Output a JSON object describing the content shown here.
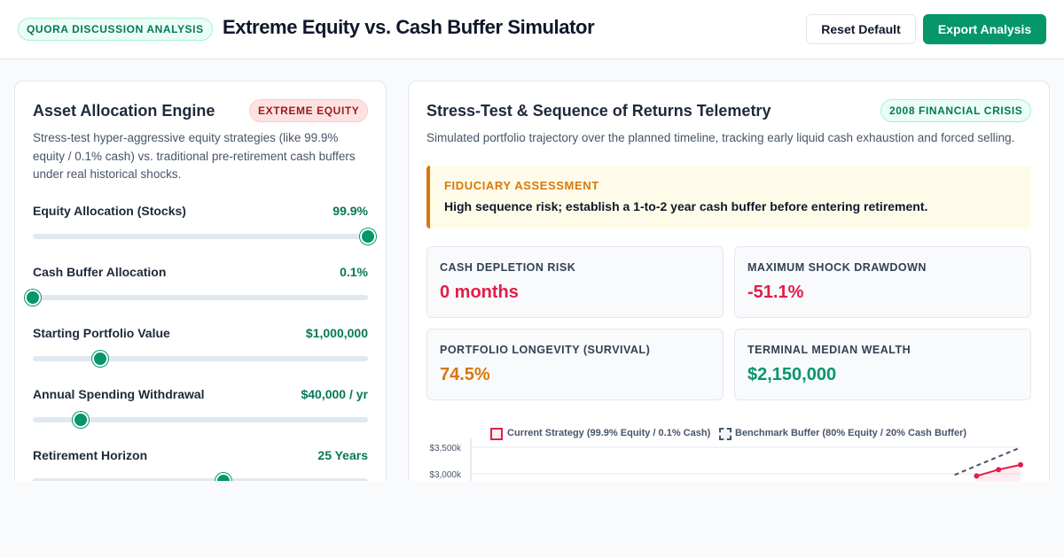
{
  "header": {
    "tag": "QUORA DISCUSSION ANALYSIS",
    "title": "Extreme Equity vs. Cash Buffer Simulator",
    "reset_label": "Reset Default",
    "export_label": "Export Analysis"
  },
  "left_panel": {
    "title": "Asset Allocation Engine",
    "badge": "EXTREME EQUITY",
    "description": "Stress-test hyper-aggressive equity strategies (like 99.9% equity / 0.1% cash) vs. traditional pre-retirement cash buffers under real historical shocks.",
    "controls": [
      {
        "label": "Equity Allocation (Stocks)",
        "value": "99.9%",
        "level": 0.999
      },
      {
        "label": "Cash Buffer Allocation",
        "value": "0.1%",
        "level": 0.0
      },
      {
        "label": "Starting Portfolio Value",
        "value": "$1,000,000",
        "level": 0.2
      },
      {
        "label": "Annual Spending Withdrawal",
        "value": "$40,000 / yr",
        "level": 0.143
      },
      {
        "label": "Retirement Horizon",
        "value": "25 Years",
        "level": 0.568
      }
    ]
  },
  "right_panel": {
    "title": "Stress-Test & Sequence of Returns Telemetry",
    "badge": "2008 FINANCIAL CRISIS",
    "description": "Simulated portfolio trajectory over the planned timeline, tracking early liquid cash exhaustion and forced selling.",
    "assessment": {
      "title": "FIDUCIARY ASSESSMENT",
      "text": "High sequence risk; establish a 1-to-2 year cash buffer before entering retirement."
    },
    "metrics": [
      {
        "label": "CASH DEPLETION RISK",
        "value": "0 months",
        "color": "#e11d48"
      },
      {
        "label": "MAXIMUM SHOCK DRAWDOWN",
        "value": "-51.1%",
        "color": "#e11d48"
      },
      {
        "label": "PORTFOLIO LONGEVITY (SURVIVAL)",
        "value": "74.5%",
        "color": "#d97706"
      },
      {
        "label": "TERMINAL MEDIAN WEALTH",
        "value": "$2,150,000",
        "color": "#059669"
      }
    ]
  },
  "chart_data": {
    "type": "line",
    "legend": [
      "Current Strategy (99.9% Equity / 0.1% Cash)",
      "Benchmark Buffer (80% Equity / 20% Cash Buffer)"
    ],
    "y_ticks": [
      "$3,500k",
      "$3,000k"
    ],
    "ylim": [
      3000,
      3500
    ],
    "series": [
      {
        "name": "Current Strategy (99.9% Equity / 0.1% Cash)",
        "color": "#e11d48",
        "style": "solid",
        "x": [
          23,
          24,
          25
        ],
        "values": [
          2960,
          3080,
          3170
        ]
      },
      {
        "name": "Benchmark Buffer (80% Equity / 20% Cash Buffer)",
        "color": "#475569",
        "style": "dashed",
        "x": [
          22,
          23.5,
          25
        ],
        "values": [
          2980,
          3240,
          3495
        ]
      }
    ],
    "x_range": [
      0,
      25
    ],
    "grid": true,
    "legend_position": "top"
  }
}
